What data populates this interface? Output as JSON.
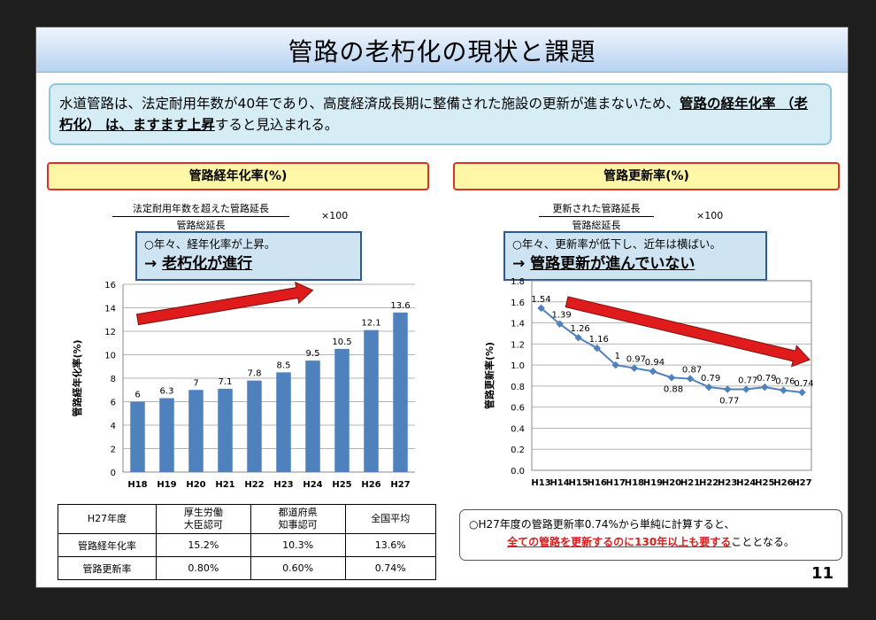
{
  "title": "管路の老朽化の現状と課題",
  "intro": {
    "part1": "水道管路は、法定耐用年数が40年であり、高度経済成長期に整備された施設の更新が進まないため、",
    "bold1": "管路の経年化率 （老朽化） は、ますます上昇",
    "part2": "すると見込まれる。"
  },
  "left": {
    "header": "管路経年化率(%)",
    "formula_num": "法定耐用年数を超えた管路延長",
    "formula_den": "管路総延長",
    "times": "×100",
    "note_line1": "○年々、経年化率が上昇。",
    "note_arrow": "→",
    "note_line2": "老朽化が進行"
  },
  "right": {
    "header": "管路更新率(%)",
    "formula_num": "更新された管路延長",
    "formula_den": "管路総延長",
    "times": "×100",
    "note_line1": "○年々、更新率が低下し、近年は横ばい。",
    "note_arrow": "→",
    "note_line2": "管路更新が進んでいない"
  },
  "chart_data": [
    {
      "type": "bar",
      "categories": [
        "H18",
        "H19",
        "H20",
        "H21",
        "H22",
        "H23",
        "H24",
        "H25",
        "H26",
        "H27"
      ],
      "values": [
        6,
        6.3,
        7,
        7.1,
        7.8,
        8.5,
        9.5,
        10.5,
        12.1,
        13.6
      ],
      "value_labels": [
        "6",
        "6.3",
        "7",
        "7.1",
        "7.8",
        "8.5",
        "9.5",
        "10.5",
        "12.1",
        "13.6"
      ],
      "ylabel": "管路経年化率(%)",
      "ylim": [
        0,
        16
      ],
      "yticks": [
        "0",
        "2",
        "4",
        "6",
        "8",
        "10",
        "12",
        "14",
        "16"
      ],
      "grid": true,
      "color": "#4f81bd",
      "arrow_color": "#e01b1b"
    },
    {
      "type": "line",
      "categories": [
        "H13",
        "H14",
        "H15",
        "H16",
        "H17",
        "H18",
        "H19",
        "H20",
        "H21",
        "H22",
        "H23",
        "H24",
        "H25",
        "H26",
        "H27"
      ],
      "values": [
        1.54,
        1.39,
        1.26,
        1.16,
        1,
        0.97,
        0.94,
        0.88,
        0.87,
        0.79,
        0.77,
        0.77,
        0.79,
        0.76,
        0.74
      ],
      "value_labels": [
        "1.54",
        "1.39",
        "1.26",
        "1.16",
        "1",
        "0.97",
        "0.94",
        "0.88",
        "0.87",
        "0.79",
        "0.77",
        "0.77",
        "0.79",
        "0.76",
        "0.74"
      ],
      "ylabel": "管路更新率(%)",
      "ylim": [
        0,
        1.8
      ],
      "yticks": [
        "0.0",
        "0.2",
        "0.4",
        "0.6",
        "0.8",
        "1.0",
        "1.2",
        "1.4",
        "1.6",
        "1.8"
      ],
      "grid": true,
      "color": "#4f81bd",
      "arrow_color": "#e01b1b"
    }
  ],
  "table": {
    "header": [
      "H27年度",
      "厚生労働\n大臣認可",
      "都道府県\n知事認可",
      "全国平均"
    ],
    "rows": [
      [
        "管路経年化率",
        "15.2%",
        "10.3%",
        "13.6%"
      ],
      [
        "管路更新率",
        "0.80%",
        "0.60%",
        "0.74%"
      ]
    ]
  },
  "bottom_note": {
    "line1": "○H27年度の管路更新率0.74%から単純に計算すると、",
    "red": "全ての管路を更新するのに130年以上も要する",
    "tail": "こととなる。"
  },
  "page_number": "11"
}
